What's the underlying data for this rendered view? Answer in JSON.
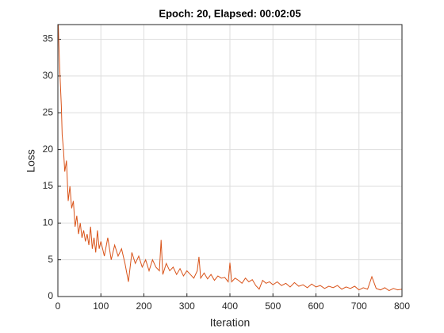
{
  "chart_data": {
    "type": "line",
    "title": "Epoch: 20, Elapsed: 00:02:05",
    "x_label": "Iteration",
    "y_label": "Loss",
    "x": [
      1,
      3,
      5,
      8,
      10,
      13,
      16,
      20,
      24,
      28,
      32,
      36,
      40,
      44,
      48,
      52,
      56,
      60,
      64,
      68,
      72,
      76,
      80,
      84,
      88,
      92,
      96,
      100,
      108,
      116,
      124,
      132,
      140,
      148,
      156,
      164,
      172,
      180,
      188,
      196,
      204,
      212,
      220,
      228,
      236,
      240,
      244,
      252,
      260,
      268,
      276,
      284,
      292,
      300,
      308,
      316,
      324,
      328,
      332,
      340,
      348,
      356,
      364,
      372,
      380,
      388,
      396,
      400,
      404,
      412,
      420,
      428,
      436,
      444,
      452,
      460,
      468,
      476,
      484,
      492,
      500,
      510,
      520,
      530,
      540,
      550,
      560,
      570,
      580,
      590,
      600,
      610,
      620,
      630,
      640,
      650,
      660,
      670,
      680,
      690,
      700,
      710,
      720,
      730,
      740,
      750,
      760,
      770,
      780,
      790,
      800
    ],
    "series": [
      {
        "name": "Loss",
        "color": "#d95319",
        "values": [
          37,
          33,
          30,
          26,
          22,
          20,
          17,
          18.5,
          13,
          15,
          12,
          13,
          9.5,
          11,
          8.5,
          10,
          8,
          9,
          7.5,
          8.5,
          7,
          9.5,
          6.5,
          8,
          6,
          9,
          6.5,
          7.5,
          5.5,
          8,
          5,
          7,
          5.5,
          6.5,
          4.5,
          2,
          6,
          4.5,
          5.5,
          4,
          5,
          3.5,
          5,
          4,
          3.5,
          7.7,
          3,
          4.5,
          3.5,
          4,
          3,
          3.8,
          2.8,
          3.5,
          3,
          2.5,
          3.5,
          5.4,
          2.5,
          3.2,
          2.4,
          3,
          2.2,
          2.8,
          2.5,
          2.6,
          2,
          4.6,
          2,
          2.5,
          2.2,
          1.8,
          2.5,
          2,
          2.3,
          1.5,
          1,
          2.2,
          1.8,
          2,
          1.6,
          2,
          1.5,
          1.8,
          1.3,
          1.9,
          1.4,
          1.6,
          1.2,
          1.7,
          1.3,
          1.5,
          1.1,
          1.4,
          1.2,
          1.5,
          1,
          1.3,
          1.1,
          1.4,
          0.9,
          1.2,
          1,
          2.7,
          1.1,
          0.9,
          1.2,
          0.8,
          1.1,
          0.9,
          1.0
        ]
      }
    ],
    "xlim": [
      0,
      800
    ],
    "ylim": [
      0,
      37
    ],
    "xticks": [
      0,
      100,
      200,
      300,
      400,
      500,
      600,
      700,
      800
    ],
    "yticks": [
      0,
      5,
      10,
      15,
      20,
      25,
      30,
      35
    ],
    "grid": true
  }
}
